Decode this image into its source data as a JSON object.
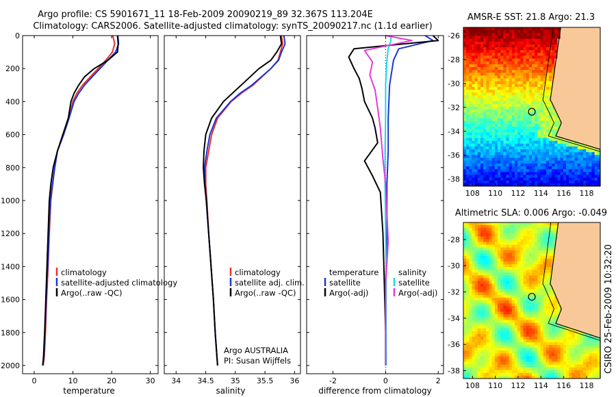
{
  "figure": {
    "title_line1": "Argo profile: CS 5901671_11 18-Feb-2009 20090219_89 32.367S 113.204E",
    "title_line2": "Climatology: CARS2006. Satellite-adjusted climatology: synTS_20090217.nc (1.1d earlier)",
    "credit": "CSIRO 25-Feb-2009 10:32:20"
  },
  "chart_data": [
    {
      "type": "line",
      "id": "temperature",
      "xlabel": "temperature",
      "ylabel": "",
      "xlim": [
        -3,
        32
      ],
      "ylim": [
        2050,
        0
      ],
      "xticks": [
        0,
        10,
        20,
        30
      ],
      "yticks": [
        0,
        200,
        400,
        600,
        800,
        1000,
        1200,
        1400,
        1600,
        1800,
        2000
      ],
      "series": [
        {
          "name": "climatology",
          "color": "#e8302a",
          "x": [
            20.3,
            20.8,
            20.2,
            18.5,
            16.5,
            14.5,
            12.5,
            11.0,
            10.0,
            9.0,
            7.6,
            6.0,
            5.3,
            4.8,
            4.3,
            3.9,
            3.6,
            3.2,
            2.9,
            2.6,
            2.3
          ],
          "y": [
            0,
            50,
            100,
            150,
            200,
            250,
            300,
            350,
            400,
            500,
            600,
            700,
            800,
            900,
            1000,
            1200,
            1400,
            1600,
            1800,
            1950,
            2000
          ]
        },
        {
          "name": "satellite-adjusted climatology",
          "color": "#1a35d6",
          "x": [
            21.6,
            21.8,
            21.0,
            19.0,
            17.0,
            15.0,
            13.0,
            11.5,
            10.3,
            9.0,
            7.6,
            6.0,
            5.3,
            4.7,
            4.2,
            3.8,
            3.5,
            3.1,
            2.8,
            2.5,
            2.2
          ],
          "y": [
            0,
            50,
            100,
            150,
            200,
            250,
            300,
            350,
            400,
            500,
            600,
            700,
            800,
            900,
            1000,
            1200,
            1400,
            1600,
            1800,
            1950,
            2000
          ]
        },
        {
          "name": "Argo(..raw -QC)",
          "color": "#000000",
          "x": [
            21.5,
            21.7,
            21.5,
            19.0,
            15.5,
            13.0,
            11.5,
            10.3,
            9.5,
            8.8,
            7.4,
            6.0,
            4.9,
            4.3,
            3.9,
            3.6,
            3.3,
            3.0,
            2.7,
            2.4,
            2.2
          ],
          "y": [
            0,
            50,
            100,
            150,
            200,
            250,
            300,
            350,
            400,
            500,
            600,
            700,
            800,
            900,
            1000,
            1200,
            1400,
            1600,
            1800,
            1950,
            2000
          ]
        }
      ],
      "legend": [
        "climatology",
        "satellite-adjusted climatology",
        "Argo(..raw -QC)"
      ],
      "legend_position": "lower-right"
    },
    {
      "type": "line",
      "id": "salinity",
      "xlabel": "salinity",
      "ylabel": "",
      "xlim": [
        33.8,
        36.1
      ],
      "ylim": [
        2050,
        0
      ],
      "xticks": [
        34,
        34.5,
        35,
        35.5,
        36
      ],
      "yticks": [],
      "series": [
        {
          "name": "climatology",
          "color": "#e8302a",
          "x": [
            35.78,
            35.8,
            35.76,
            35.72,
            35.6,
            35.45,
            35.3,
            35.1,
            34.93,
            34.7,
            34.6,
            34.55,
            34.5,
            34.5,
            34.52,
            34.55,
            34.59,
            34.63,
            34.66,
            34.69,
            34.7
          ],
          "y": [
            0,
            50,
            100,
            150,
            200,
            250,
            300,
            350,
            400,
            500,
            600,
            700,
            800,
            900,
            1000,
            1200,
            1400,
            1600,
            1800,
            1950,
            2000
          ]
        },
        {
          "name": "satellite adj. clim.",
          "color": "#1a35d6",
          "x": [
            35.82,
            35.84,
            35.78,
            35.73,
            35.6,
            35.44,
            35.28,
            35.08,
            34.92,
            34.68,
            34.57,
            34.52,
            34.48,
            34.49,
            34.51,
            34.55,
            34.59,
            34.63,
            34.66,
            34.69,
            34.7
          ],
          "y": [
            0,
            50,
            100,
            150,
            200,
            250,
            300,
            350,
            400,
            500,
            600,
            700,
            800,
            900,
            1000,
            1200,
            1400,
            1600,
            1800,
            1950,
            2000
          ]
        },
        {
          "name": "Argo(..raw -QC)",
          "color": "#000000",
          "x": [
            35.76,
            35.78,
            35.7,
            35.6,
            35.4,
            35.25,
            35.1,
            34.95,
            34.8,
            34.6,
            34.5,
            34.47,
            34.46,
            34.48,
            34.51,
            34.55,
            34.59,
            34.63,
            34.66,
            34.69,
            34.7
          ],
          "y": [
            0,
            50,
            100,
            150,
            200,
            250,
            300,
            350,
            400,
            500,
            600,
            700,
            800,
            900,
            1000,
            1200,
            1400,
            1600,
            1800,
            1950,
            2000
          ]
        }
      ],
      "legend": [
        "climatology",
        "satellite adj. clim.",
        "Argo(..raw -QC)"
      ],
      "legend_position": "lower-right",
      "annotation_line1": "Argo AUSTRALIA",
      "annotation_line2": "PI: Susan Wijffels"
    },
    {
      "type": "line",
      "id": "difference",
      "xlabel": "difference from climatology",
      "ylabel": "",
      "xlim": [
        -3.0,
        2.2
      ],
      "ylim": [
        2050,
        0
      ],
      "xticks": [
        -2,
        0,
        2
      ],
      "yticks": [],
      "zero_line": "dotted",
      "series": [
        {
          "name": "temperature satellite",
          "color": "#1a35d6",
          "x": [
            1.5,
            1.8,
            0.5,
            0.3,
            0.15,
            0.1,
            0.1,
            0.05,
            0.05,
            0.0,
            0.0,
            0.0
          ],
          "y": [
            0,
            30,
            80,
            150,
            300,
            500,
            700,
            900,
            1200,
            1500,
            1800,
            2000
          ]
        },
        {
          "name": "temperature Argo(-adj)",
          "color": "#000000",
          "x": [
            1.8,
            2.0,
            -1.2,
            -1.4,
            -1.2,
            -1.0,
            -0.9,
            -0.8,
            -0.5,
            -0.4,
            -0.3,
            -0.8,
            -0.5,
            -0.2,
            -0.1,
            -0.05,
            0.0,
            0.0
          ],
          "y": [
            0,
            30,
            80,
            130,
            200,
            260,
            320,
            400,
            500,
            560,
            650,
            760,
            850,
            950,
            1200,
            1500,
            1800,
            2000
          ]
        },
        {
          "name": "salinity satellite",
          "color": "#19d8ea",
          "x": [
            0.2,
            0.2,
            0.1,
            0.05,
            0.0,
            0.0,
            -0.02,
            -0.02,
            0.0,
            0.02,
            0.02,
            0.03
          ],
          "y": [
            0,
            30,
            80,
            150,
            300,
            500,
            700,
            900,
            1200,
            1500,
            1800,
            2000
          ]
        },
        {
          "name": "salinity Argo(-adj)",
          "color": "#e23ad6",
          "x": [
            0.0,
            1.0,
            -0.8,
            -0.5,
            -0.6,
            -0.4,
            -0.3,
            -0.2,
            -0.1,
            0.0,
            0.1,
            0.0,
            0.0
          ],
          "y": [
            0,
            30,
            90,
            160,
            240,
            330,
            440,
            560,
            750,
            900,
            1250,
            1500,
            2000
          ]
        }
      ],
      "legend_left_title": "temperature",
      "legend_right_title": "salinity",
      "legend_left": [
        "satellite",
        "Argo(-adj)"
      ],
      "legend_right": [
        "satellite",
        "Argo(-adj)"
      ],
      "legend_position": "lower"
    },
    {
      "type": "heatmap",
      "id": "sst_map",
      "title": "AMSR-E SST: 21.8 Argo: 21.3",
      "xlim": [
        107.2,
        119.2
      ],
      "ylim": [
        -38.6,
        -25.3
      ],
      "xticks": [
        108,
        110,
        112,
        114,
        116,
        118
      ],
      "yticks": [
        -26,
        -28,
        -30,
        -32,
        -34,
        -36,
        -38
      ],
      "colormap": "jet",
      "float_position": {
        "lon": 113.204,
        "lat": -32.367
      }
    },
    {
      "type": "heatmap",
      "id": "sla_map",
      "title": "Altimetric SLA: 0.006 Argo: -0.049",
      "xlim": [
        107.2,
        119.2
      ],
      "ylim": [
        -38.6,
        -26.7
      ],
      "xticks": [
        108,
        110,
        112,
        114,
        116,
        118
      ],
      "yticks": [
        -28,
        -30,
        -32,
        -34,
        -36,
        -38
      ],
      "colormap": "jet",
      "float_position": {
        "lon": 113.204,
        "lat": -32.367
      }
    }
  ],
  "colors": {
    "land": "#f8c898",
    "coast": "#000000",
    "axis": "#000000"
  }
}
